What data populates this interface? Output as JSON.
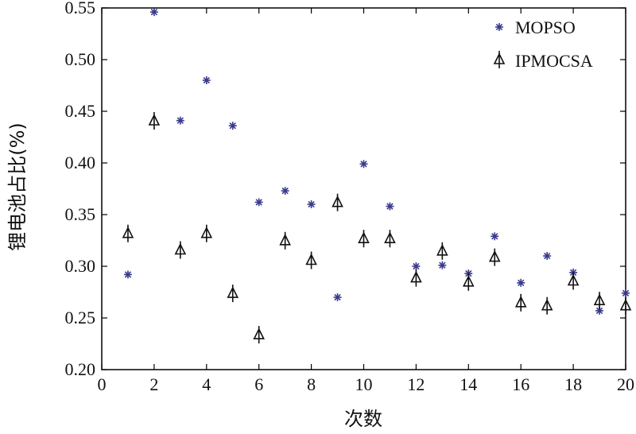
{
  "chart_data": {
    "type": "scatter",
    "xlabel": "次数",
    "ylabel": "锂电池占比(%)",
    "xlim": [
      0,
      20
    ],
    "ylim": [
      0.2,
      0.55
    ],
    "xticks": [
      "0",
      "2",
      "4",
      "6",
      "8",
      "10",
      "12",
      "14",
      "16",
      "18",
      "20"
    ],
    "yticks": [
      "0.20",
      "0.25",
      "0.30",
      "0.35",
      "0.40",
      "0.45",
      "0.50",
      "0.55"
    ],
    "grid": false,
    "legend_position": "top-right",
    "series": [
      {
        "name": "MOPSO",
        "marker": "asterisk",
        "color": "#3a3a8c",
        "x": [
          1,
          2,
          3,
          4,
          5,
          6,
          7,
          8,
          9,
          10,
          11,
          12,
          13,
          14,
          15,
          16,
          17,
          18,
          19,
          20
        ],
        "y": [
          0.292,
          0.546,
          0.441,
          0.48,
          0.436,
          0.362,
          0.373,
          0.36,
          0.27,
          0.399,
          0.358,
          0.3,
          0.301,
          0.293,
          0.329,
          0.284,
          0.31,
          0.294,
          0.257,
          0.274
        ]
      },
      {
        "name": "IPMOCSA",
        "marker": "triangle-errorbar",
        "color": "#111111",
        "x": [
          1,
          2,
          3,
          4,
          5,
          6,
          7,
          8,
          9,
          10,
          11,
          12,
          13,
          14,
          15,
          16,
          17,
          18,
          19,
          20
        ],
        "y": [
          0.331,
          0.44,
          0.315,
          0.331,
          0.273,
          0.233,
          0.324,
          0.305,
          0.361,
          0.326,
          0.326,
          0.288,
          0.314,
          0.284,
          0.308,
          0.264,
          0.261,
          0.285,
          0.266,
          0.261
        ]
      }
    ]
  }
}
